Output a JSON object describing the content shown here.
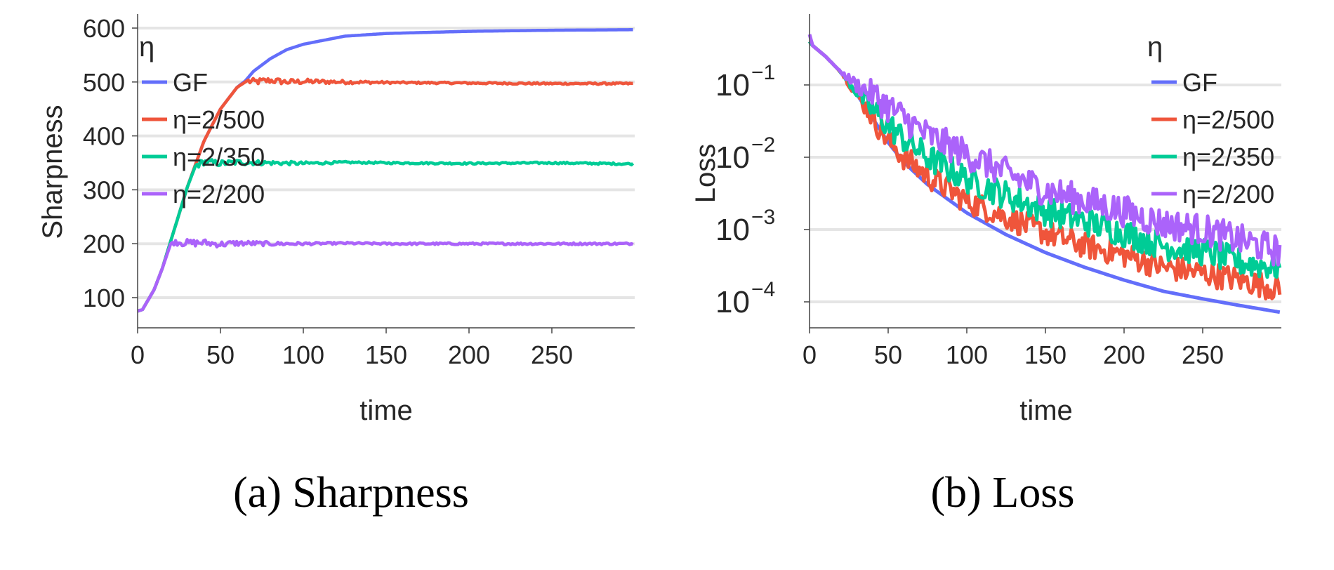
{
  "colors": {
    "GF": "#636efa",
    "eta_500": "#ef553b",
    "eta_350": "#00cc96",
    "eta_200": "#ab63fa",
    "grid": "#e5e5e5",
    "axis": "#444444"
  },
  "chart_data": [
    {
      "type": "line",
      "caption": "(a) Sharpness",
      "title": "",
      "xlabel": "time",
      "ylabel": "Sharpness",
      "xlim": [
        0,
        300
      ],
      "ylim": [
        45,
        625
      ],
      "xticks": [
        0,
        50,
        100,
        150,
        200,
        250
      ],
      "xtick_labels": [
        "0",
        "50",
        "100",
        "150",
        "200",
        "250"
      ],
      "yticks": [
        100,
        200,
        300,
        400,
        500,
        600
      ],
      "ytick_labels": [
        "100",
        "200",
        "300",
        "400",
        "500",
        "600"
      ],
      "grid": true,
      "legend": {
        "title": "η",
        "placement": "top-left",
        "entries": [
          "GF",
          "η=2/500",
          "η=2/350",
          "η=2/200"
        ]
      },
      "series": [
        {
          "name": "GF",
          "color_key": "GF",
          "x": [
            0,
            3,
            10,
            15,
            20,
            25,
            30,
            40,
            50,
            60,
            65,
            70,
            80,
            90,
            100,
            125,
            150,
            200,
            250,
            299
          ],
          "y": [
            75,
            78,
            115,
            155,
            205,
            255,
            305,
            390,
            450,
            490,
            502,
            520,
            543,
            560,
            570,
            585,
            590,
            594,
            596,
            597
          ]
        },
        {
          "name": "η=2/500",
          "color_key": "eta_500",
          "x": [
            0,
            3,
            10,
            15,
            20,
            25,
            30,
            40,
            50,
            60,
            66,
            70,
            80,
            90,
            100,
            125,
            150,
            200,
            250,
            299
          ],
          "y": [
            75,
            78,
            115,
            155,
            205,
            255,
            305,
            390,
            450,
            490,
            502,
            500,
            503,
            500,
            501,
            500,
            499,
            498,
            497,
            497
          ]
        },
        {
          "name": "η=2/350",
          "color_key": "eta_350",
          "x": [
            0,
            3,
            10,
            15,
            20,
            25,
            30,
            35,
            40,
            50,
            60,
            80,
            100,
            125,
            150,
            200,
            250,
            299
          ],
          "y": [
            75,
            78,
            115,
            155,
            205,
            255,
            305,
            345,
            352,
            349,
            351,
            350,
            349,
            351,
            350,
            349,
            350,
            348
          ]
        },
        {
          "name": "η=2/200",
          "color_key": "eta_200",
          "x": [
            0,
            3,
            10,
            15,
            20,
            22,
            30,
            40,
            50,
            60,
            80,
            100,
            125,
            150,
            200,
            250,
            299
          ],
          "y": [
            75,
            78,
            115,
            155,
            200,
            205,
            201,
            202,
            199,
            201,
            200,
            200,
            201,
            200,
            200,
            200,
            200
          ]
        }
      ]
    },
    {
      "type": "line",
      "caption": "(b) Loss",
      "title": "",
      "xlabel": "time",
      "ylabel": "Loss",
      "yscale": "log",
      "xlim": [
        0,
        300
      ],
      "ylim": [
        4e-05,
        0.8
      ],
      "xticks": [
        0,
        50,
        100,
        150,
        200,
        250
      ],
      "xtick_labels": [
        "0",
        "50",
        "100",
        "150",
        "200",
        "250"
      ],
      "yticks": [
        0.1,
        0.01,
        0.001,
        0.0001
      ],
      "ytick_labels": [
        {
          "base": "10",
          "exp": "−1"
        },
        {
          "base": "10",
          "exp": "−2"
        },
        {
          "base": "10",
          "exp": "−3"
        },
        {
          "base": "10",
          "exp": "−4"
        }
      ],
      "grid": true,
      "legend": {
        "title": "η",
        "placement": "top-right",
        "entries": [
          "GF",
          "η=2/500",
          "η=2/350",
          "η=2/200"
        ]
      },
      "series": [
        {
          "name": "GF",
          "color_key": "GF",
          "x": [
            0,
            2,
            10,
            20,
            30,
            40,
            50,
            60,
            75,
            100,
            125,
            150,
            175,
            200,
            225,
            250,
            275,
            299
          ],
          "y": [
            0.4,
            0.35,
            0.25,
            0.15,
            0.075,
            0.035,
            0.016,
            0.0085,
            0.0042,
            0.0017,
            0.00085,
            0.00048,
            0.0003,
            0.0002,
            0.00014,
            0.00011,
            8.8e-05,
            7.2e-05
          ]
        },
        {
          "name": "η=2/500",
          "color_key": "eta_500",
          "x": [
            0,
            2,
            10,
            20,
            30,
            40,
            50,
            60,
            75,
            100,
            125,
            150,
            175,
            200,
            225,
            250,
            275,
            299
          ],
          "y": [
            0.4,
            0.35,
            0.25,
            0.15,
            0.075,
            0.036,
            0.017,
            0.01,
            0.0055,
            0.0025,
            0.0015,
            0.0009,
            0.0006,
            0.00045,
            0.0003,
            0.00025,
            0.0002,
            0.00015
          ]
        },
        {
          "name": "η=2/350",
          "color_key": "eta_350",
          "x": [
            0,
            2,
            10,
            20,
            30,
            40,
            50,
            60,
            75,
            100,
            125,
            150,
            175,
            200,
            225,
            250,
            275,
            299
          ],
          "y": [
            0.4,
            0.35,
            0.25,
            0.15,
            0.08,
            0.045,
            0.028,
            0.018,
            0.01,
            0.005,
            0.003,
            0.0018,
            0.0013,
            0.0009,
            0.0006,
            0.0005,
            0.00035,
            0.0003
          ]
        },
        {
          "name": "η=2/200",
          "color_key": "eta_200",
          "x": [
            0,
            2,
            10,
            20,
            30,
            40,
            50,
            60,
            75,
            100,
            125,
            150,
            175,
            200,
            225,
            250,
            275,
            299
          ],
          "y": [
            0.5,
            0.35,
            0.25,
            0.15,
            0.1,
            0.075,
            0.05,
            0.035,
            0.02,
            0.011,
            0.006,
            0.0035,
            0.0025,
            0.0018,
            0.0012,
            0.001,
            0.0007,
            0.0005
          ]
        }
      ]
    }
  ]
}
